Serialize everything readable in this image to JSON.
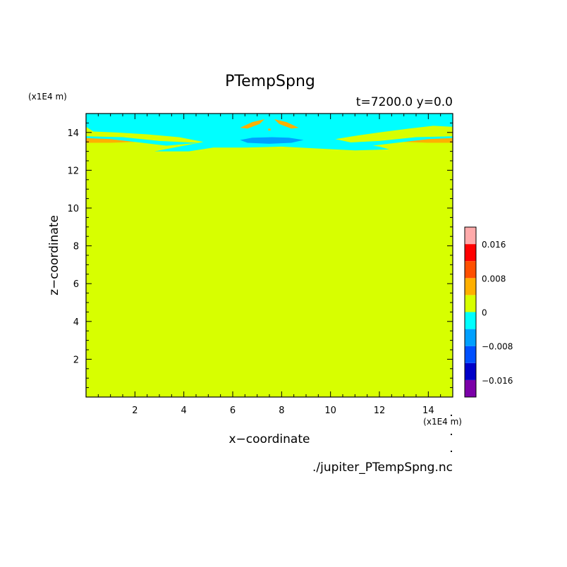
{
  "chart_data": {
    "type": "heatmap",
    "title": "PTempSpng",
    "subtitle": "t=7200.0 y=0.0",
    "xlabel": "x−coordinate",
    "ylabel": "z−coordinate",
    "x_unit": "(x1E4 m)",
    "y_unit": "(x1E4 m)",
    "source_file": "./jupiter_PTempSpng.nc",
    "xlim": [
      0,
      15
    ],
    "ylim": [
      0,
      15
    ],
    "x_ticks": [
      2,
      4,
      6,
      8,
      10,
      12,
      14
    ],
    "y_ticks": [
      2,
      4,
      6,
      8,
      10,
      12,
      14
    ],
    "background_value": 0,
    "colorbar": {
      "levels": [
        -0.02,
        -0.016,
        -0.012,
        -0.008,
        -0.004,
        0,
        0.004,
        0.008,
        0.012,
        0.016,
        0.02
      ],
      "labeled_ticks": [
        {
          "value": 0.016,
          "label": "0.016"
        },
        {
          "value": 0.008,
          "label": "0.008"
        },
        {
          "value": 0,
          "label": "0"
        },
        {
          "value": -0.008,
          "label": "−0.008"
        },
        {
          "value": -0.016,
          "label": "−0.016"
        }
      ],
      "colors": [
        "#7b00a8",
        "#0000c8",
        "#0050ff",
        "#00a0ff",
        "#00ffff",
        "#d7ff00",
        "#ffb000",
        "#ff5000",
        "#ff0000",
        "#ffaaaa"
      ]
    },
    "regions": [
      {
        "name": "cyan-band",
        "value_range": [
          -0.004,
          0
        ],
        "color": "#00ffff",
        "points": [
          [
            0,
            14.3
          ],
          [
            0,
            15
          ],
          [
            15,
            15
          ],
          [
            15,
            14.3
          ],
          [
            14.2,
            14.35
          ],
          [
            13.2,
            14.2
          ],
          [
            12,
            14.0
          ],
          [
            10.9,
            13.8
          ],
          [
            10.2,
            13.65
          ],
          [
            10.9,
            13.45
          ],
          [
            12,
            13.25
          ],
          [
            12.4,
            13.1
          ],
          [
            11,
            13.05
          ],
          [
            9.5,
            13.15
          ],
          [
            8,
            13.25
          ],
          [
            6.5,
            13.2
          ],
          [
            5.2,
            13.2
          ],
          [
            4.2,
            13.0
          ],
          [
            2.8,
            13.0
          ],
          [
            4,
            13.3
          ],
          [
            4.8,
            13.5
          ],
          [
            3.8,
            13.75
          ],
          [
            2.5,
            13.9
          ],
          [
            1.2,
            14.0
          ],
          [
            0.3,
            14.05
          ]
        ]
      },
      {
        "name": "cyan-lower-left",
        "value_range": [
          -0.004,
          0
        ],
        "color": "#00ffff",
        "points": [
          [
            0,
            13.8
          ],
          [
            1.5,
            13.75
          ],
          [
            3,
            13.55
          ],
          [
            4.6,
            13.45
          ],
          [
            3.3,
            13.3
          ],
          [
            2,
            13.5
          ],
          [
            0,
            13.55
          ]
        ]
      },
      {
        "name": "cyan-lower-right",
        "value_range": [
          -0.004,
          0
        ],
        "color": "#00ffff",
        "points": [
          [
            15,
            13.8
          ],
          [
            13.5,
            13.75
          ],
          [
            12,
            13.55
          ],
          [
            10.5,
            13.45
          ],
          [
            11.7,
            13.3
          ],
          [
            13,
            13.5
          ],
          [
            15,
            13.55
          ]
        ]
      },
      {
        "name": "blue-core",
        "value_range": [
          -0.008,
          -0.004
        ],
        "color": "#00a0ff",
        "points": [
          [
            6.3,
            13.6
          ],
          [
            6.8,
            13.72
          ],
          [
            7.6,
            13.75
          ],
          [
            8.3,
            13.72
          ],
          [
            8.9,
            13.6
          ],
          [
            8.4,
            13.45
          ],
          [
            7.5,
            13.4
          ],
          [
            6.6,
            13.45
          ]
        ]
      },
      {
        "name": "orange-left-edge",
        "value_range": [
          0.004,
          0.008
        ],
        "color": "#ffb000",
        "points": [
          [
            0,
            13.45
          ],
          [
            0,
            13.7
          ],
          [
            1,
            13.65
          ],
          [
            2,
            13.5
          ],
          [
            1,
            13.45
          ]
        ]
      },
      {
        "name": "orange-right-edge",
        "value_range": [
          0.004,
          0.008
        ],
        "color": "#ffb000",
        "points": [
          [
            15,
            13.45
          ],
          [
            15,
            13.7
          ],
          [
            14,
            13.65
          ],
          [
            13,
            13.5
          ],
          [
            14,
            13.45
          ]
        ]
      },
      {
        "name": "orange-center-left",
        "value_range": [
          0.004,
          0.008
        ],
        "color": "#ffb000",
        "points": [
          [
            6.3,
            14.25
          ],
          [
            6.8,
            14.55
          ],
          [
            7.3,
            14.7
          ],
          [
            7.1,
            14.45
          ],
          [
            6.6,
            14.2
          ]
        ]
      },
      {
        "name": "orange-center-right",
        "value_range": [
          0.004,
          0.008
        ],
        "color": "#ffb000",
        "points": [
          [
            8.7,
            14.25
          ],
          [
            8.2,
            14.55
          ],
          [
            7.7,
            14.7
          ],
          [
            7.9,
            14.45
          ],
          [
            8.4,
            14.2
          ]
        ]
      },
      {
        "name": "orange-center-dot",
        "value_range": [
          0.004,
          0.008
        ],
        "color": "#ffb000",
        "points": [
          [
            7.45,
            14.1
          ],
          [
            7.55,
            14.1
          ],
          [
            7.55,
            14.2
          ],
          [
            7.45,
            14.2
          ]
        ]
      }
    ]
  }
}
